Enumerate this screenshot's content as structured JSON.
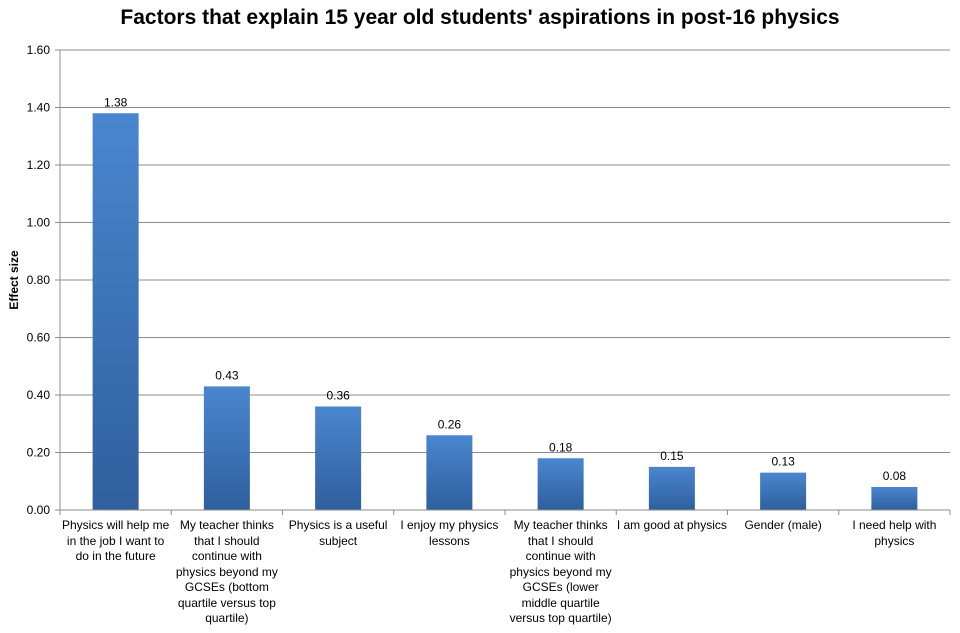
{
  "chart_data": {
    "type": "bar",
    "title": "Factors that explain 15 year old students' aspirations in post-16 physics",
    "ylabel": "Effect size",
    "xlabel": "",
    "ylim": [
      0,
      1.6
    ],
    "yticks": [
      "0.00",
      "0.20",
      "0.40",
      "0.60",
      "0.80",
      "1.00",
      "1.20",
      "1.40",
      "1.60"
    ],
    "grid": true,
    "legend": "none",
    "bar_color": "#3f7ac4",
    "categories": [
      "Physics will help me in the job I want to do in the future",
      "My teacher thinks that I should continue with physics beyond my GCSEs (bottom quartile versus top quartile)",
      "Physics is a useful subject",
      "I enjoy my physics lessons",
      "My teacher thinks that I should continue with physics beyond my GCSEs (lower middle quartile versus top quartile)",
      "I am good at physics",
      "Gender (male)",
      "I need help with physics"
    ],
    "values": [
      1.38,
      0.43,
      0.36,
      0.26,
      0.18,
      0.15,
      0.13,
      0.08
    ],
    "data_labels": [
      "1.38",
      "0.43",
      "0.36",
      "0.26",
      "0.18",
      "0.15",
      "0.13",
      "0.08"
    ]
  }
}
